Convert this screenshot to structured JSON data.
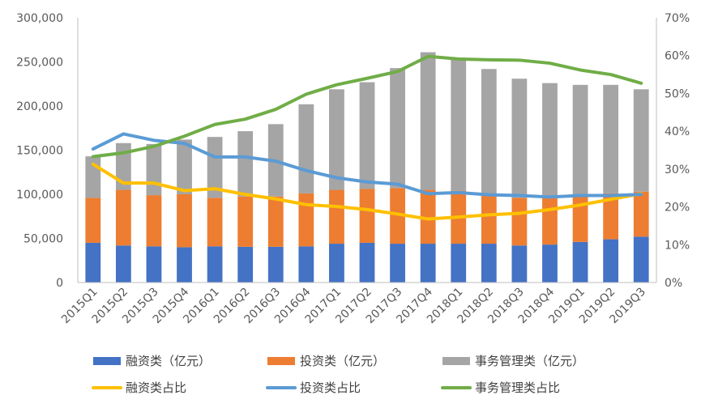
{
  "chart_data": {
    "type": "bar",
    "stacked": true,
    "categories": [
      "2015Q1",
      "2015Q2",
      "2015Q3",
      "2015Q4",
      "2016Q1",
      "2016Q2",
      "2016Q3",
      "2016Q4",
      "2017Q1",
      "2017Q2",
      "2017Q3",
      "2017Q4",
      "2018Q1",
      "2018Q2",
      "2018Q3",
      "2018Q4",
      "2019Q1",
      "2019Q2",
      "2019Q3"
    ],
    "y_left": {
      "min": 0,
      "max": 300000,
      "step": 50000,
      "tick_labels": [
        "0",
        "50,000",
        "100,000",
        "150,000",
        "200,000",
        "250,000",
        "300,000"
      ]
    },
    "y_right": {
      "min": 0,
      "max": 70,
      "step": 10,
      "tick_labels": [
        "0%",
        "10%",
        "20%",
        "30%",
        "40%",
        "50%",
        "60%",
        "70%"
      ]
    },
    "grid": false,
    "legend_position": "bottom",
    "series": [
      {
        "name": "融资类（亿元）",
        "type": "bar",
        "axis": "left",
        "color": "#4472C4",
        "values": [
          45000,
          42000,
          41000,
          40000,
          41000,
          40500,
          40500,
          41000,
          44000,
          45000,
          44000,
          44000,
          44000,
          44000,
          42000,
          43000,
          46000,
          49000,
          52000
        ]
      },
      {
        "name": "投资类（亿元）",
        "type": "bar",
        "axis": "left",
        "color": "#ED7D31",
        "values": [
          51000,
          63000,
          58000,
          60000,
          55000,
          57000,
          57000,
          60000,
          61000,
          61000,
          63000,
          61000,
          60000,
          56000,
          54000,
          54000,
          54000,
          52000,
          51000
        ]
      },
      {
        "name": "事务管理类（亿元）",
        "type": "bar",
        "axis": "left",
        "color": "#A5A5A5",
        "values": [
          47000,
          53000,
          58000,
          62000,
          69000,
          74000,
          82000,
          101000,
          114000,
          121000,
          136000,
          156000,
          151000,
          142000,
          135000,
          129000,
          124000,
          123000,
          116000
        ]
      },
      {
        "name": "融资类占比",
        "type": "line",
        "axis": "right",
        "color": "#FFC000",
        "values": [
          31.3,
          26.3,
          26.3,
          24.3,
          24.8,
          23.3,
          22.1,
          20.6,
          20.1,
          19.3,
          18.1,
          16.8,
          17.3,
          17.9,
          18.3,
          19.3,
          20.5,
          22.0,
          23.5
        ]
      },
      {
        "name": "投资类占比",
        "type": "line",
        "axis": "right",
        "color": "#5B9BD5",
        "values": [
          35.3,
          39.3,
          37.6,
          36.8,
          33.2,
          33.2,
          32.1,
          29.6,
          27.7,
          26.6,
          26.0,
          23.5,
          23.8,
          23.2,
          23.0,
          22.6,
          23.0,
          23.0,
          23.3
        ]
      },
      {
        "name": "事务管理类占比",
        "type": "line",
        "axis": "right",
        "color": "#70AD47",
        "values": [
          33.3,
          34.3,
          36.0,
          38.7,
          41.8,
          43.2,
          45.8,
          49.8,
          52.3,
          54.0,
          55.8,
          59.8,
          59.1,
          58.9,
          58.8,
          58.0,
          56.2,
          55.0,
          52.7
        ]
      }
    ]
  }
}
